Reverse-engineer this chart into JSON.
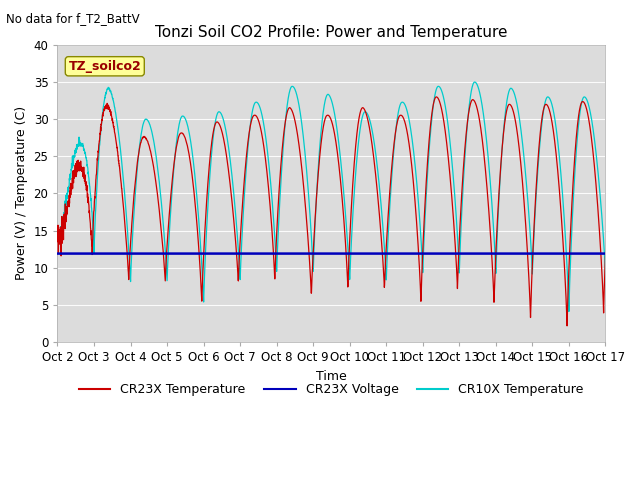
{
  "title": "Tonzi Soil CO2 Profile: Power and Temperature",
  "subtitle": "No data for f_T2_BattV",
  "xlabel": "Time",
  "ylabel": "Power (V) / Temperature (C)",
  "ylim": [
    0,
    40
  ],
  "xlim": [
    0,
    15
  ],
  "xtick_labels": [
    "Oct 2",
    "Oct 3",
    "Oct 4",
    "Oct 5",
    "Oct 6",
    "Oct 7",
    "Oct 8",
    "Oct 9",
    "Oct 10",
    "Oct 11",
    "Oct 12",
    "Oct 13",
    "Oct 14",
    "Oct 15",
    "Oct 16",
    "Oct 17"
  ],
  "ytick_labels": [
    "0",
    "5",
    "10",
    "15",
    "20",
    "25",
    "30",
    "35",
    "40"
  ],
  "ytick_values": [
    0,
    5,
    10,
    15,
    20,
    25,
    30,
    35,
    40
  ],
  "legend_label": "TZ_soilco2",
  "legend_color": "#ffff99",
  "background_color": "#dcdcdc",
  "cr23x_temp_color": "#cc0000",
  "cr23x_voltage_color": "#0000bb",
  "cr10x_temp_color": "#00cccc",
  "title_fontsize": 11,
  "label_fontsize": 9,
  "tick_fontsize": 8.5
}
